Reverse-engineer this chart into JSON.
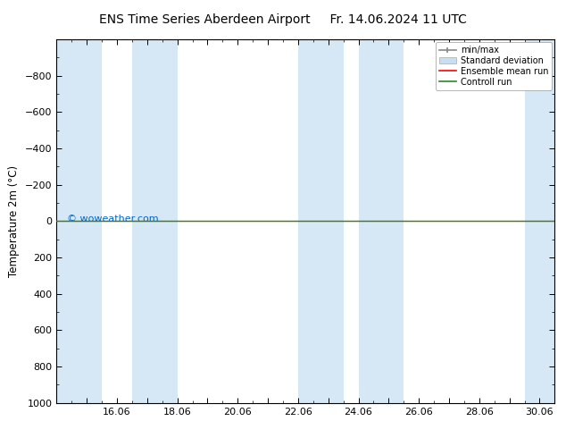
{
  "title_left": "ENS Time Series Aberdeen Airport",
  "title_right": "Fr. 14.06.2024 11 UTC",
  "ylabel": "Temperature 2m (°C)",
  "watermark": "© woweather.com",
  "xlim_start": 14.0,
  "xlim_end": 30.5,
  "ylim_bottom": 1000,
  "ylim_top": -1000,
  "yticks": [
    -800,
    -600,
    -400,
    -200,
    0,
    200,
    400,
    600,
    800,
    1000
  ],
  "xticks": [
    15.0,
    16.0,
    17.0,
    18.0,
    19.0,
    20.0,
    21.0,
    22.0,
    23.0,
    24.0,
    25.0,
    26.0,
    27.0,
    28.0,
    29.0,
    30.0
  ],
  "xtick_labels": [
    "",
    "16.06",
    "",
    "18.06",
    "",
    "20.06",
    "",
    "22.06",
    "",
    "24.06",
    "",
    "26.06",
    "",
    "28.06",
    "",
    "30.06"
  ],
  "shaded_bands": [
    [
      14.0,
      15.5
    ],
    [
      16.5,
      18.0
    ],
    [
      22.0,
      23.5
    ],
    [
      24.0,
      25.5
    ],
    [
      29.5,
      31.0
    ]
  ],
  "shaded_color": "#d6e8f5",
  "ensemble_mean_color": "#ff0000",
  "control_run_color": "#228B22",
  "legend_labels": [
    "min/max",
    "Standard deviation",
    "Ensemble mean run",
    "Controll run"
  ],
  "legend_minmax_color": "#888888",
  "legend_std_color": "#c8dff0",
  "legend_mean_color": "#ff0000",
  "legend_ctrl_color": "#228B22",
  "background_color": "#ffffff",
  "plot_bg_color": "#ffffff",
  "title_fontsize": 10,
  "label_fontsize": 8.5,
  "tick_fontsize": 8,
  "watermark_color": "#0066cc",
  "watermark_fontsize": 8
}
